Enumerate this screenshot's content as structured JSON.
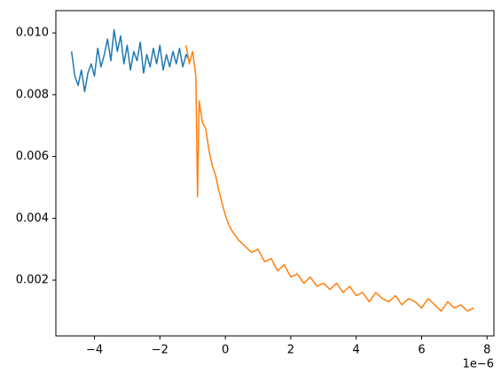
{
  "chart_data": {
    "type": "line",
    "x_offset_label": "1e−6",
    "xlim": [
      -5.18e-06,
      8.21e-06
    ],
    "ylim": [
      0.000195,
      0.01072
    ],
    "xticks": [
      {
        "value": -4e-06,
        "label": "−4"
      },
      {
        "value": -2e-06,
        "label": "−2"
      },
      0,
      {
        "value": 2e-06,
        "label": "2"
      },
      {
        "value": 4e-06,
        "label": "4"
      },
      {
        "value": 6e-06,
        "label": "6"
      },
      {
        "value": 8e-06,
        "label": "8"
      }
    ],
    "yticks": [
      0.002,
      0.004,
      0.006,
      0.008,
      {
        "value": 0.01,
        "label": "0.010"
      }
    ],
    "grid": false,
    "series": [
      {
        "color": "#1f77b4",
        "x": [
          -4.7e-06,
          -4.6e-06,
          -4.5e-06,
          -4.4e-06,
          -4.3e-06,
          -4.2e-06,
          -4.1e-06,
          -4e-06,
          -3.9e-06,
          -3.8e-06,
          -3.7e-06,
          -3.6e-06,
          -3.5e-06,
          -3.4e-06,
          -3.3e-06,
          -3.2e-06,
          -3.1e-06,
          -3e-06,
          -2.9e-06,
          -2.8e-06,
          -2.7e-06,
          -2.6e-06,
          -2.5e-06,
          -2.4e-06,
          -2.3e-06,
          -2.2e-06,
          -2.1e-06,
          -2e-06,
          -1.9e-06,
          -1.8e-06,
          -1.7e-06,
          -1.6e-06,
          -1.5e-06,
          -1.4e-06,
          -1.3e-06,
          -1.2e-06,
          -1.1e-06
        ],
        "values": [
          0.0094,
          0.0086,
          0.0083,
          0.0088,
          0.0081,
          0.0087,
          0.009,
          0.0086,
          0.0095,
          0.0089,
          0.0093,
          0.0098,
          0.0091,
          0.0101,
          0.0094,
          0.0099,
          0.009,
          0.0096,
          0.0088,
          0.0094,
          0.0091,
          0.0097,
          0.0087,
          0.0093,
          0.0089,
          0.0095,
          0.009,
          0.0096,
          0.0088,
          0.0093,
          0.0089,
          0.0094,
          0.009,
          0.0095,
          0.0089,
          0.0093,
          0.0091
        ]
      },
      {
        "color": "#ff7f0e",
        "x": [
          -1.2e-06,
          -1.1e-06,
          -1e-06,
          -9e-07,
          -8.5e-07,
          -8e-07,
          -7e-07,
          -6e-07,
          -5e-07,
          -4e-07,
          -3e-07,
          -2e-07,
          -1e-07,
          0,
          1e-07,
          2e-07,
          4e-07,
          6e-07,
          8e-07,
          1e-06,
          1.2e-06,
          1.4e-06,
          1.6e-06,
          1.8e-06,
          2e-06,
          2.2e-06,
          2.4e-06,
          2.6e-06,
          2.8e-06,
          3e-06,
          3.2e-06,
          3.4e-06,
          3.6e-06,
          3.8e-06,
          4e-06,
          4.2e-06,
          4.4e-06,
          4.6e-06,
          4.8e-06,
          5e-06,
          5.2e-06,
          5.4e-06,
          5.6e-06,
          5.8e-06,
          6e-06,
          6.2e-06,
          6.4e-06,
          6.6e-06,
          6.8e-06,
          7e-06,
          7.2e-06,
          7.4e-06,
          7.6e-06
        ],
        "values": [
          0.0096,
          0.009,
          0.0094,
          0.0086,
          0.0047,
          0.0078,
          0.0071,
          0.0069,
          0.0062,
          0.0057,
          0.0054,
          0.0049,
          0.0045,
          0.0041,
          0.0038,
          0.0036,
          0.0033,
          0.0031,
          0.0029,
          0.003,
          0.0026,
          0.0027,
          0.0023,
          0.0025,
          0.0021,
          0.0022,
          0.0019,
          0.0021,
          0.0018,
          0.0019,
          0.0017,
          0.0019,
          0.0016,
          0.0018,
          0.0015,
          0.0016,
          0.0013,
          0.0016,
          0.0014,
          0.0013,
          0.0015,
          0.0012,
          0.0014,
          0.0013,
          0.0011,
          0.0014,
          0.0012,
          0.001,
          0.0013,
          0.0011,
          0.0012,
          0.001,
          0.0011
        ]
      }
    ]
  }
}
